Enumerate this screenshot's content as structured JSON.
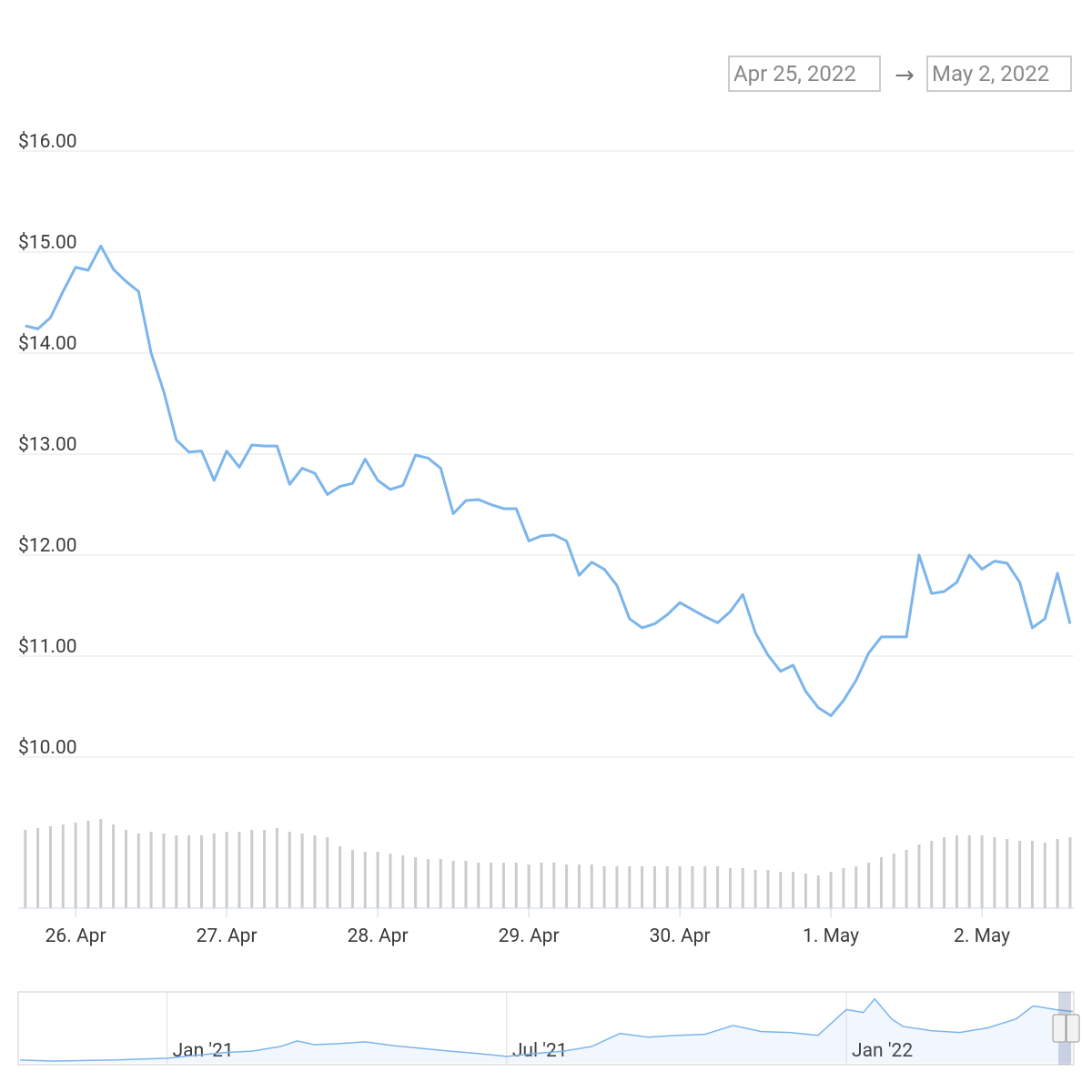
{
  "date_range": {
    "from": "Apr 25, 2022",
    "separator": "→",
    "to": "May 2, 2022"
  },
  "chart_data": {
    "type": "line",
    "color": "#7cb5ec",
    "x": [
      -8,
      -6,
      -4,
      -2,
      0,
      2,
      4,
      6,
      8,
      10,
      12,
      14,
      16,
      18,
      20,
      22,
      24,
      26,
      28,
      30,
      32,
      34,
      36,
      38,
      40,
      42,
      44,
      46,
      48,
      50,
      52,
      54,
      56,
      58,
      60,
      62,
      64,
      66,
      68,
      70,
      72,
      74,
      76,
      78,
      80,
      82,
      84,
      86,
      88,
      90,
      92,
      94,
      96,
      98,
      100,
      102,
      104,
      106,
      108,
      110,
      112,
      114,
      116,
      118,
      120,
      122,
      124,
      126,
      128,
      130,
      132,
      134,
      136,
      138,
      140,
      142,
      144,
      146,
      148,
      150,
      152,
      154,
      156,
      158
    ],
    "values": [
      14.27,
      14.24,
      14.35,
      14.61,
      14.85,
      14.82,
      15.06,
      14.83,
      14.71,
      14.61,
      14.0,
      13.62,
      13.14,
      13.02,
      13.03,
      12.74,
      13.03,
      12.87,
      13.09,
      13.08,
      13.08,
      12.7,
      12.86,
      12.81,
      12.6,
      12.68,
      12.71,
      12.95,
      12.74,
      12.65,
      12.69,
      12.99,
      12.96,
      12.86,
      12.41,
      12.54,
      12.55,
      12.5,
      12.46,
      12.46,
      12.14,
      12.19,
      12.2,
      12.14,
      11.8,
      11.93,
      11.86,
      11.7,
      11.37,
      11.28,
      11.32,
      11.41,
      11.53,
      11.46,
      11.39,
      11.33,
      11.44,
      11.61,
      11.23,
      11.01,
      10.85,
      10.91,
      10.65,
      10.49,
      10.41,
      10.56,
      10.76,
      11.03,
      11.19,
      11.19,
      11.19,
      12.0,
      11.62,
      11.64,
      11.73,
      12.0,
      11.86,
      11.94,
      11.92,
      11.73,
      11.28,
      11.37,
      11.82,
      11.32
    ],
    "xlim": [
      -8.4,
      158.3
    ],
    "xticks": [
      {
        "value": 0,
        "label": "26. Apr"
      },
      {
        "value": 24,
        "label": "27. Apr"
      },
      {
        "value": 48,
        "label": "28. Apr"
      },
      {
        "value": 72,
        "label": "29. Apr"
      },
      {
        "value": 96,
        "label": "30. Apr"
      },
      {
        "value": 120,
        "label": "1. May"
      },
      {
        "value": 144,
        "label": "2. May"
      }
    ],
    "ylim": [
      10,
      16
    ],
    "yticks": [
      {
        "value": 10,
        "label": "$10.00"
      },
      {
        "value": 11,
        "label": "$11.00"
      },
      {
        "value": 12,
        "label": "$12.00"
      },
      {
        "value": 13,
        "label": "$13.00"
      },
      {
        "value": 14,
        "label": "$14.00"
      },
      {
        "value": 15,
        "label": "$15.00"
      },
      {
        "value": 16,
        "label": "$16.00"
      }
    ],
    "grid": true,
    "volume": {
      "color": "#cccccc",
      "values": [
        86,
        88,
        90,
        92,
        94,
        96,
        98,
        92,
        86,
        82,
        84,
        82,
        80,
        80,
        80,
        82,
        84,
        84,
        86,
        86,
        88,
        84,
        82,
        80,
        78,
        68,
        64,
        62,
        62,
        60,
        58,
        56,
        54,
        54,
        52,
        52,
        50,
        50,
        50,
        50,
        48,
        50,
        50,
        48,
        48,
        48,
        46,
        46,
        46,
        46,
        46,
        46,
        46,
        46,
        46,
        46,
        44,
        44,
        42,
        42,
        40,
        40,
        38,
        36,
        40,
        44,
        46,
        50,
        56,
        60,
        64,
        70,
        74,
        78,
        80,
        80,
        80,
        78,
        76,
        74,
        74,
        72,
        76,
        78
      ]
    },
    "navigator": {
      "type": "area",
      "color": "#7cb5ec",
      "x": [
        -2.6,
        -2,
        -1,
        0,
        0.5,
        1,
        1.5,
        2,
        2.3,
        2.6,
        3,
        3.5,
        4,
        4.5,
        5,
        5.5,
        6,
        6.5,
        7,
        7.5,
        8,
        8.5,
        9,
        9.5,
        10,
        10.5,
        11,
        11.5,
        12,
        12.3,
        12.5,
        12.8,
        13,
        13.5,
        14,
        14.5,
        15,
        15.3,
        15.7,
        16
      ],
      "values": [
        0.6,
        0.4,
        0.6,
        1.0,
        1.6,
        2.2,
        2.5,
        3.5,
        4.7,
        3.9,
        4.1,
        4.5,
        3.7,
        3.1,
        2.5,
        2.0,
        1.4,
        2.0,
        2.5,
        3.5,
        6.3,
        5.5,
        5.9,
        6.1,
        8.0,
        6.7,
        6.5,
        5.9,
        11.4,
        10.8,
        13.7,
        9.4,
        7.8,
        6.9,
        6.5,
        7.5,
        9.4,
        12.2,
        11.4,
        11.0
      ],
      "xlim": [
        -2.63,
        15.97
      ],
      "xticks": [
        {
          "value": 0,
          "label": "Jan '21"
        },
        {
          "value": 6,
          "label": "Jul '21"
        },
        {
          "value": 12,
          "label": "Jan '22"
        }
      ],
      "ylim": [
        0,
        15
      ]
    }
  }
}
